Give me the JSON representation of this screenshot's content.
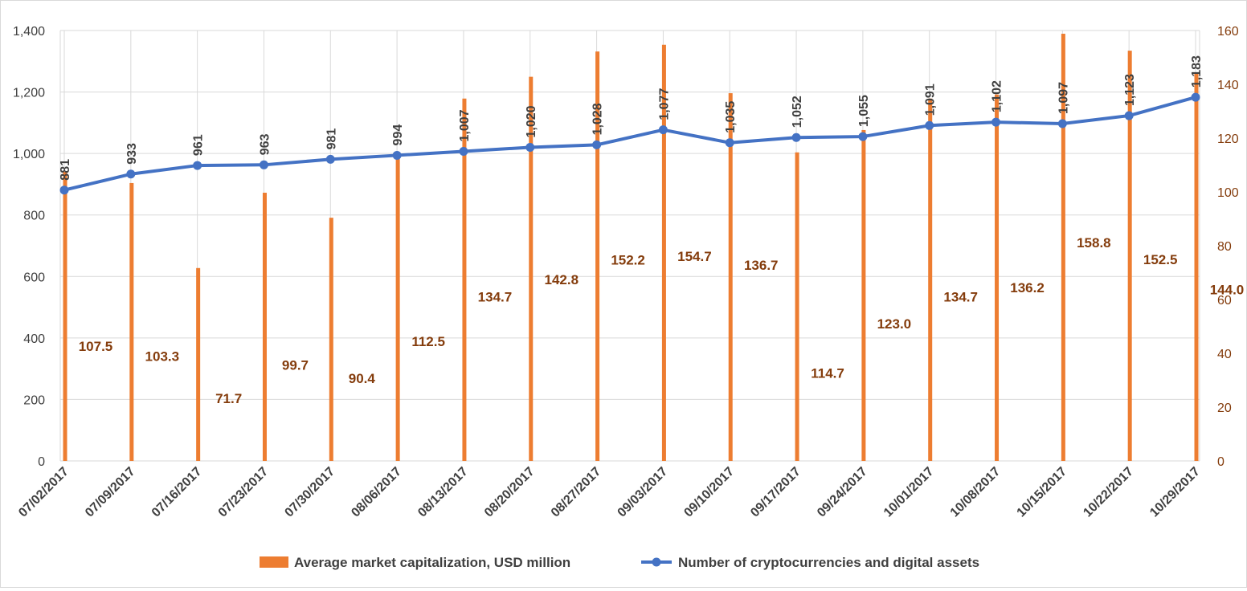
{
  "chart_data": {
    "type": "bar+line",
    "title": "",
    "categories": [
      "07/02/2017",
      "07/09/2017",
      "07/16/2017",
      "07/23/2017",
      "07/30/2017",
      "08/06/2017",
      "08/13/2017",
      "08/20/2017",
      "08/27/2017",
      "09/03/2017",
      "09/10/2017",
      "09/17/2017",
      "09/24/2017",
      "10/01/2017",
      "10/08/2017",
      "10/15/2017",
      "10/22/2017",
      "10/29/2017"
    ],
    "series": [
      {
        "name": "Average market capitalization, USD million",
        "type": "bar",
        "axis": "right",
        "color": "#ED7D31",
        "values": [
          107.5,
          103.3,
          71.7,
          99.7,
          90.4,
          112.5,
          134.7,
          142.8,
          152.2,
          154.7,
          136.7,
          114.7,
          123.0,
          134.7,
          136.2,
          158.8,
          152.5,
          144.0
        ],
        "labels": [
          "107.5",
          "103.3",
          "71.7",
          "99.7",
          "90.4",
          "112.5",
          "134.7",
          "142.8",
          "152.2",
          "154.7",
          "136.7",
          "114.7",
          "123.0",
          "134.7",
          "136.2",
          "158.8",
          "152.5",
          "144.0"
        ],
        "label_color": "#843C0C"
      },
      {
        "name": "Number of cryptocurrencies and digital assets",
        "type": "line",
        "axis": "left",
        "color": "#4472C4",
        "values": [
          881,
          933,
          961,
          963,
          981,
          994,
          1007,
          1020,
          1028,
          1077,
          1035,
          1052,
          1055,
          1091,
          1102,
          1097,
          1123,
          1183
        ],
        "labels": [
          "881",
          "933",
          "961",
          "963",
          "981",
          "994",
          "1,007",
          "1,020",
          "1,028",
          "1,077",
          "1,035",
          "1,052",
          "1,055",
          "1,091",
          "1,102",
          "1,097",
          "1,123",
          "1,183"
        ],
        "label_color": "#404040"
      }
    ],
    "y_left": {
      "lim": [
        0,
        1400
      ],
      "ticks": [
        0,
        200,
        400,
        600,
        800,
        1000,
        1200,
        1400
      ],
      "tick_labels": [
        "0",
        "200",
        "400",
        "600",
        "800",
        "1,000",
        "1,200",
        "1,400"
      ]
    },
    "y_right": {
      "lim": [
        0,
        160
      ],
      "ticks": [
        0,
        20,
        40,
        60,
        80,
        100,
        120,
        140,
        160
      ],
      "tick_labels": [
        "0",
        "20",
        "40",
        "60",
        "80",
        "100",
        "120",
        "140",
        "160"
      ],
      "color": "#843C0C"
    },
    "grid": true,
    "legend": "bottom"
  }
}
